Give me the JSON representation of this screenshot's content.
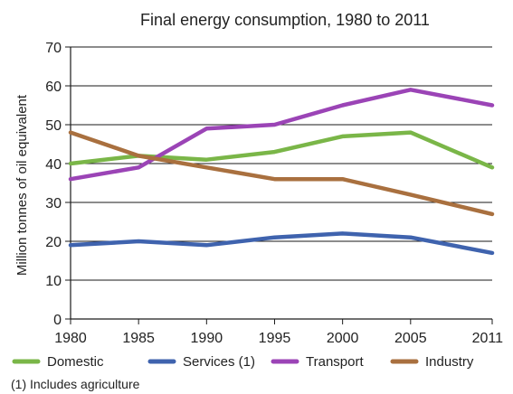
{
  "chart_data": {
    "type": "line",
    "title": "Final energy consumption, 1980 to 2011",
    "xlabel": "",
    "ylabel": "Million tonnes of oil equivalent",
    "x": [
      "1980",
      "1985",
      "1990",
      "1995",
      "2000",
      "2005",
      "2011"
    ],
    "xlim": [
      1980,
      2011
    ],
    "ylim": [
      0,
      70
    ],
    "yticks": [
      "0",
      "10",
      "20",
      "30",
      "40",
      "50",
      "60",
      "70"
    ],
    "grid": true,
    "legend_position": "bottom",
    "series": [
      {
        "name": "Domestic",
        "color": "#7ab648",
        "values": [
          40,
          42,
          41,
          43,
          47,
          48,
          39
        ]
      },
      {
        "name": "Services (1)",
        "color": "#3f63ae",
        "values": [
          19,
          20,
          19,
          21,
          22,
          21,
          17
        ]
      },
      {
        "name": "Transport",
        "color": "#9b44b6",
        "values": [
          36,
          39,
          49,
          50,
          55,
          59,
          55
        ]
      },
      {
        "name": "Industry",
        "color": "#a9703f",
        "values": [
          48,
          42,
          39,
          36,
          36,
          32,
          27
        ]
      }
    ],
    "footnote": "(1) Includes agriculture"
  }
}
